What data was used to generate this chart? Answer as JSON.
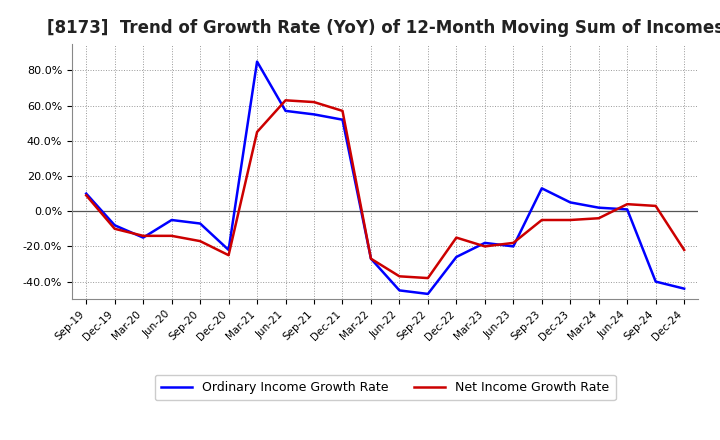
{
  "title": "[8173]  Trend of Growth Rate (YoY) of 12-Month Moving Sum of Incomes",
  "x_labels": [
    "Sep-19",
    "Dec-19",
    "Mar-20",
    "Jun-20",
    "Sep-20",
    "Dec-20",
    "Mar-21",
    "Jun-21",
    "Sep-21",
    "Dec-21",
    "Mar-22",
    "Jun-22",
    "Sep-22",
    "Dec-22",
    "Mar-23",
    "Jun-23",
    "Sep-23",
    "Dec-23",
    "Mar-24",
    "Jun-24",
    "Sep-24",
    "Dec-24"
  ],
  "ordinary_income": [
    10.0,
    -8.0,
    -15.0,
    -5.0,
    -7.0,
    -22.0,
    85.0,
    57.0,
    55.0,
    52.0,
    -27.0,
    -45.0,
    -47.0,
    -26.0,
    -18.0,
    -20.0,
    13.0,
    5.0,
    2.0,
    1.0,
    -40.0,
    -44.0
  ],
  "net_income": [
    9.0,
    -10.0,
    -14.0,
    -14.0,
    -17.0,
    -25.0,
    45.0,
    63.0,
    62.0,
    57.0,
    -27.0,
    -37.0,
    -38.0,
    -15.0,
    -20.0,
    -18.0,
    -5.0,
    -5.0,
    -4.0,
    4.0,
    3.0,
    -22.0
  ],
  "ordinary_color": "#0000ff",
  "net_color": "#cc0000",
  "ylim": [
    -50,
    95
  ],
  "yticks": [
    -40,
    -20,
    0,
    20,
    40,
    60,
    80
  ],
  "background_color": "#ffffff",
  "plot_bg_color": "#ffffff",
  "grid_color": "#999999",
  "legend_ordinary": "Ordinary Income Growth Rate",
  "legend_net": "Net Income Growth Rate",
  "title_fontsize": 12,
  "line_width": 1.8
}
